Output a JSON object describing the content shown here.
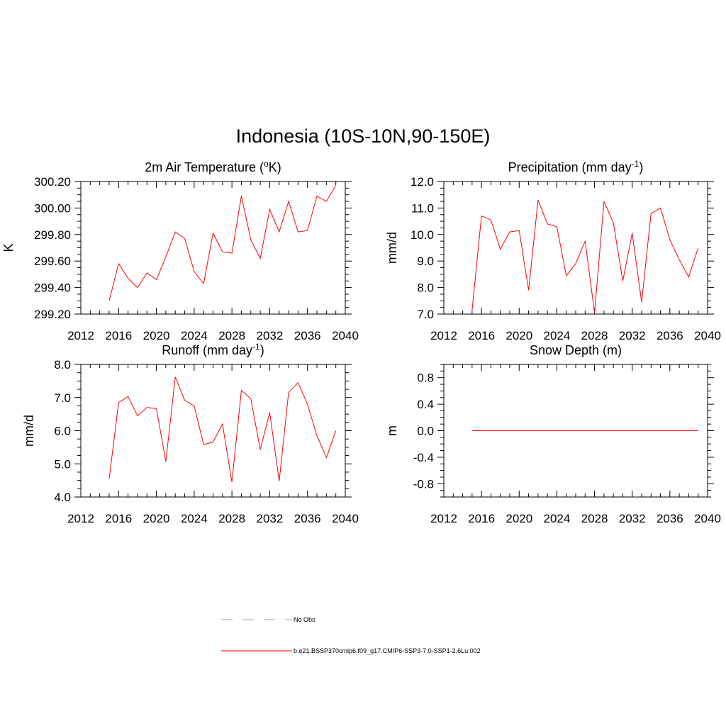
{
  "figure": {
    "title": "Indonesia (10S-10N,90-150E)"
  },
  "legend": {
    "items": [
      {
        "label": "No Obs",
        "color": "#9999dd",
        "dash": true
      },
      {
        "label": "b.e21.BSSP370cmip6.f09_g17.CMIP6-SSP3-7.0-SSP1-2.6Lu.002",
        "color": "#ff0000",
        "dash": false
      }
    ]
  },
  "chart_data": [
    {
      "type": "line",
      "title": "2m Air Temperature (",
      "title_sup": "o",
      "title_after": "K)",
      "ylabel": "K",
      "xlim": [
        2012,
        2040
      ],
      "ylim": [
        299.2,
        300.2
      ],
      "xticks": [
        "2012",
        "2016",
        "2020",
        "2024",
        "2028",
        "2032",
        "2036",
        "2040"
      ],
      "yticks": [
        "299.20",
        "299.40",
        "299.60",
        "299.80",
        "300.00",
        "300.20"
      ],
      "color": "#ff0000",
      "x": [
        2015,
        2016,
        2017,
        2018,
        2019,
        2020,
        2021,
        2022,
        2023,
        2024,
        2025,
        2026,
        2027,
        2028,
        2029,
        2030,
        2031,
        2032,
        2033,
        2034,
        2035,
        2036,
        2037,
        2038,
        2039
      ],
      "values": [
        299.3,
        299.58,
        299.47,
        299.4,
        299.51,
        299.46,
        299.63,
        299.82,
        299.77,
        299.52,
        299.43,
        299.81,
        299.67,
        299.66,
        300.09,
        299.76,
        299.62,
        299.99,
        299.82,
        300.05,
        299.82,
        299.83,
        300.09,
        300.05,
        300.17
      ]
    },
    {
      "type": "line",
      "title": "Precipitation (mm day",
      "title_sup": "-1",
      "title_after": ")",
      "ylabel": "mm/d",
      "xlim": [
        2012,
        2040
      ],
      "ylim": [
        7.0,
        12.0
      ],
      "xticks": [
        "2012",
        "2016",
        "2020",
        "2024",
        "2028",
        "2032",
        "2036",
        "2040"
      ],
      "yticks": [
        "7.0",
        "8.0",
        "9.0",
        "10.0",
        "11.0",
        "12.0"
      ],
      "color": "#ff0000",
      "x": [
        2015,
        2016,
        2017,
        2018,
        2019,
        2020,
        2021,
        2022,
        2023,
        2024,
        2025,
        2026,
        2027,
        2028,
        2029,
        2030,
        2031,
        2032,
        2033,
        2034,
        2035,
        2036,
        2037,
        2038,
        2039
      ],
      "values": [
        7.15,
        10.7,
        10.55,
        9.45,
        10.1,
        10.15,
        7.9,
        11.3,
        10.4,
        10.3,
        8.45,
        8.9,
        9.75,
        7.05,
        11.25,
        10.45,
        8.25,
        10.05,
        7.45,
        10.8,
        11.0,
        9.8,
        9.05,
        8.4,
        9.5
      ]
    },
    {
      "type": "line",
      "title": "Runoff (mm day",
      "title_sup": "-1",
      "title_after": ")",
      "ylabel": "mm/d",
      "xlim": [
        2012,
        2040
      ],
      "ylim": [
        4.0,
        8.0
      ],
      "xticks": [
        "2012",
        "2016",
        "2020",
        "2024",
        "2028",
        "2032",
        "2036",
        "2040"
      ],
      "yticks": [
        "4.0",
        "5.0",
        "6.0",
        "7.0",
        "8.0"
      ],
      "color": "#ff0000",
      "x": [
        2015,
        2016,
        2017,
        2018,
        2019,
        2020,
        2021,
        2022,
        2023,
        2024,
        2025,
        2026,
        2027,
        2028,
        2029,
        2030,
        2031,
        2032,
        2033,
        2034,
        2035,
        2036,
        2037,
        2038,
        2039
      ],
      "values": [
        4.55,
        6.85,
        7.03,
        6.45,
        6.7,
        6.67,
        5.07,
        7.62,
        6.92,
        6.75,
        5.58,
        5.66,
        6.2,
        4.45,
        7.22,
        6.96,
        5.43,
        6.55,
        4.48,
        7.16,
        7.45,
        6.8,
        5.85,
        5.19,
        6.0
      ]
    },
    {
      "type": "line",
      "title": "Snow Depth (m)",
      "title_sup": "",
      "title_after": "",
      "ylabel": "m",
      "xlim": [
        2012,
        2040
      ],
      "ylim": [
        -1.0,
        1.0
      ],
      "xticks": [
        "2012",
        "2016",
        "2020",
        "2024",
        "2028",
        "2032",
        "2036",
        "2040"
      ],
      "yticks": [
        "-0.8",
        "-0.4",
        "0.0",
        "0.4",
        "0.8"
      ],
      "color": "#ff0000",
      "x": [
        2015,
        2016,
        2017,
        2018,
        2019,
        2020,
        2021,
        2022,
        2023,
        2024,
        2025,
        2026,
        2027,
        2028,
        2029,
        2030,
        2031,
        2032,
        2033,
        2034,
        2035,
        2036,
        2037,
        2038,
        2039
      ],
      "values": [
        0,
        0,
        0,
        0,
        0,
        0,
        0,
        0,
        0,
        0,
        0,
        0,
        0,
        0,
        0,
        0,
        0,
        0,
        0,
        0,
        0,
        0,
        0,
        0,
        0
      ]
    }
  ]
}
